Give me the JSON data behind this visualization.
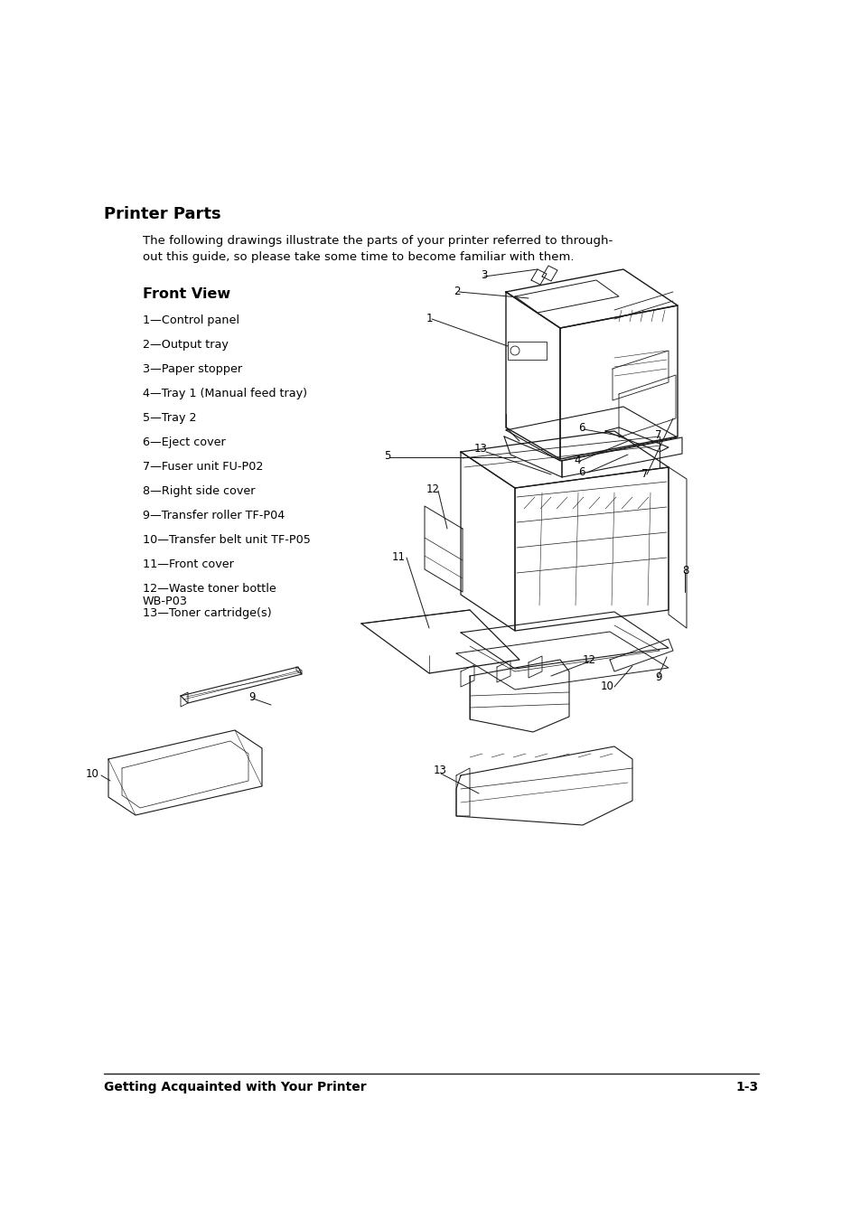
{
  "bg_color": "#ffffff",
  "title": "Printer Parts",
  "subtitle_line1": "The following drawings illustrate the parts of your printer referred to through-",
  "subtitle_line2": "out this guide, so please take some time to become familiar with them.",
  "section_title": "Front View",
  "items": [
    "1—Control panel",
    "2—Output tray",
    "3—Paper stopper",
    "4—Tray 1 (Manual feed tray)",
    "5—Tray 2",
    "6—Eject cover",
    "7—Fuser unit FU-P02",
    "8—Right side cover",
    "9—Transfer roller TF-P04",
    "10—Transfer belt unit TF-P05",
    "11—Front cover",
    "12—Waste toner bottle\n    WB-P03",
    "13—Toner cartridge(s)"
  ],
  "footer_left": "Getting Acquainted with Your Printer",
  "footer_right": "1-3",
  "lc": "#1a1a1a",
  "lw": 0.8
}
